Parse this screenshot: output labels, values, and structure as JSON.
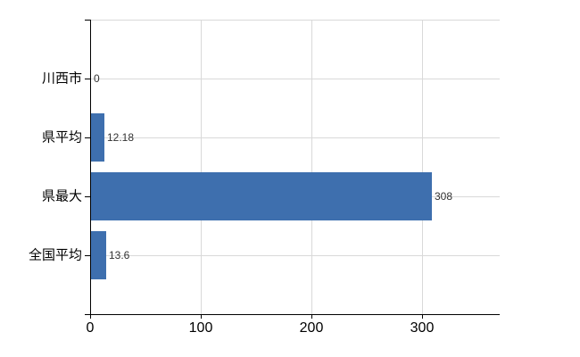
{
  "chart_data": {
    "type": "bar",
    "orientation": "horizontal",
    "title": "",
    "xlabel": "",
    "ylabel": "",
    "categories": [
      "川西市",
      "県平均",
      "県最大",
      "全国平均"
    ],
    "values": [
      0,
      12.18,
      308,
      13.6
    ],
    "value_labels": [
      "0",
      "12.18",
      "308",
      "13.6"
    ],
    "x_ticks": [
      0,
      100,
      200,
      300
    ],
    "xlim": [
      0,
      370
    ],
    "grid": true,
    "legend": false,
    "colors": {
      "bar": "#3e6fae",
      "grid": "#d9d9d9",
      "axis": "#000000",
      "tick_label": "#000000",
      "value_label": "#333333",
      "background": "#ffffff"
    }
  }
}
